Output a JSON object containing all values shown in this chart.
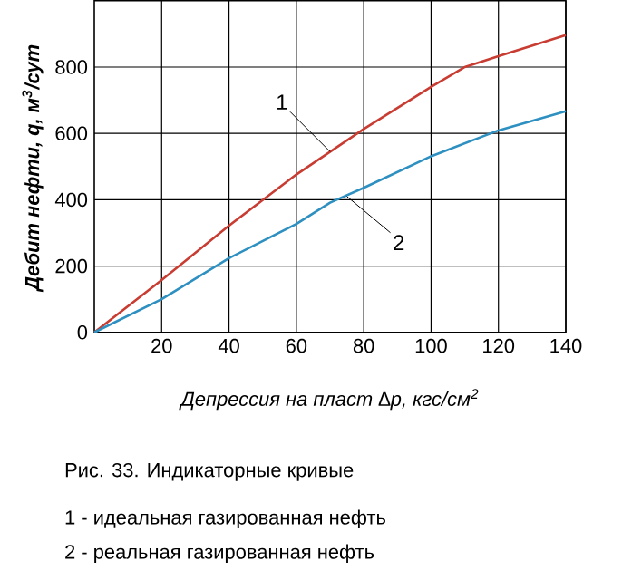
{
  "chart_data": {
    "type": "line",
    "xlabel": "Депрессия на пласт ∆p, кгс/см$^{2}$",
    "ylabel": "Дебит нефти, q, м$^{3}$/сут",
    "x": [
      0,
      20,
      40,
      60,
      80,
      100,
      110,
      120,
      140
    ],
    "series": [
      {
        "color": "#c83c32",
        "values": [
          0,
          158,
          322,
          476,
          613,
          740,
          800,
          833,
          896
        ]
      },
      {
        "color": "#2e90c0",
        "x": [
          0,
          20,
          40,
          60,
          70,
          80,
          100,
          120,
          140
        ],
        "values": [
          0,
          100,
          224,
          327,
          391,
          436,
          531,
          609,
          667
        ]
      }
    ],
    "xlim": [
      0,
      140
    ],
    "ylim": [
      0,
      1000
    ],
    "xticks": [
      20,
      40,
      60,
      80,
      100,
      120,
      140
    ],
    "yticks": [
      0,
      200,
      400,
      600,
      800
    ],
    "grid": true,
    "annotations": [
      {
        "text": "1",
        "x": 70,
        "y": 545
      },
      {
        "text": "2",
        "x": 75,
        "y": 410
      },
      "Рис. 33. Индикаторные кривые",
      "1 - идеальная газированная нефть",
      "2 - реальная газированная нефть"
    ]
  }
}
